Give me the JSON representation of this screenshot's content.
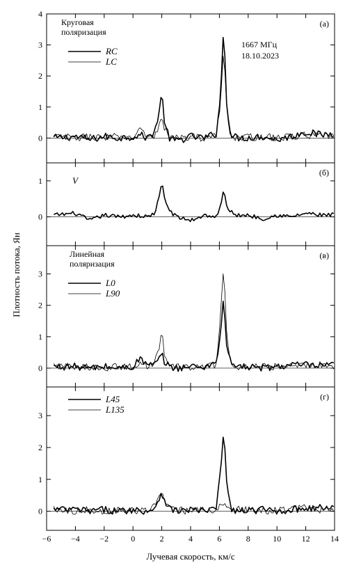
{
  "chart_data": {
    "type": "line",
    "xlabel": "Лучевая скорость, км/с",
    "ylabel": "Плотность потока, Ян",
    "xlim": [
      -6,
      14
    ],
    "x_ticks": [
      "−6",
      "−4",
      "−2",
      "0",
      "2",
      "4",
      "6",
      "8",
      "10",
      "12",
      "14"
    ],
    "panels": [
      {
        "id": "a",
        "tag": "(а)",
        "title_lines": [
          "Круговая",
          "поляризация"
        ],
        "annotation_lines": [
          "1667 МГц",
          "18.10.2023"
        ],
        "ylim": [
          -0.8,
          4
        ],
        "yticks": [
          0,
          1,
          2,
          3,
          4
        ],
        "series": [
          {
            "name": "RC",
            "style": "thick",
            "x": [
              -5.5,
              -4,
              -3,
              -2,
              -1,
              0,
              0.5,
              1,
              1.5,
              1.8,
              2,
              2.2,
              2.5,
              3,
              4,
              5,
              5.8,
              6.1,
              6.3,
              6.5,
              6.8,
              7.5,
              9,
              10,
              11,
              12,
              13,
              14
            ],
            "y": [
              0,
              0.05,
              -0.05,
              0.05,
              0,
              0.05,
              0.1,
              0,
              0.2,
              0.8,
              1.45,
              0.5,
              0,
              -0.1,
              0.05,
              0,
              0.15,
              1.5,
              3.65,
              1.2,
              0.05,
              0,
              0.05,
              -0.05,
              0.05,
              0.2,
              0.1,
              0.15
            ]
          },
          {
            "name": "LC",
            "style": "thin",
            "x": [
              -5.5,
              -4,
              -3,
              -2,
              -1,
              0,
              0.5,
              0.7,
              1,
              1.5,
              1.8,
              2,
              2.2,
              2.5,
              3,
              4,
              5,
              5.8,
              6.1,
              6.3,
              6.5,
              6.8,
              7.5,
              9,
              10,
              11,
              12,
              13,
              14
            ],
            "y": [
              0.05,
              0,
              0.05,
              0,
              0.05,
              0,
              0.35,
              0.15,
              0.05,
              0.1,
              0.35,
              0.65,
              0.3,
              0.05,
              0,
              0.05,
              0,
              0.1,
              1.2,
              2.9,
              1.0,
              0.05,
              0,
              0.05,
              0,
              0.05,
              0.1,
              0.05,
              0.1
            ]
          }
        ]
      },
      {
        "id": "b",
        "tag": "(б)",
        "ylim": [
          -0.8,
          1.5
        ],
        "yticks": [
          0,
          1
        ],
        "series": [
          {
            "name": "V",
            "style": "thick",
            "show_label": true,
            "x": [
              -5.5,
              -4,
              -3,
              -2,
              -1,
              0,
              1,
              1.5,
              1.8,
              2,
              2.2,
              2.5,
              3,
              4,
              5,
              5.8,
              6.1,
              6.3,
              6.5,
              7,
              8,
              9,
              10,
              11,
              12,
              13,
              14
            ],
            "y": [
              0.05,
              0.1,
              -0.1,
              0.05,
              0,
              0.05,
              0,
              0.1,
              0.5,
              0.95,
              0.5,
              0.2,
              0,
              -0.1,
              0.05,
              0,
              0.3,
              0.75,
              0.3,
              0.05,
              0.05,
              -0.05,
              0.05,
              0,
              0.1,
              0.05,
              0.05
            ]
          }
        ]
      },
      {
        "id": "c",
        "tag": "(в)",
        "title_lines": [
          "Линейная",
          "поляризация"
        ],
        "ylim": [
          -0.6,
          3.9
        ],
        "yticks": [
          0,
          1,
          2,
          3
        ],
        "series": [
          {
            "name": "L0",
            "style": "thick",
            "x": [
              -5.5,
              -4,
              -3,
              -2,
              -1,
              0,
              0.5,
              1,
              1.5,
              1.8,
              2,
              2.2,
              2.5,
              3,
              4,
              5,
              5.8,
              6.1,
              6.3,
              6.5,
              6.8,
              7.5,
              9,
              10,
              11,
              12,
              13,
              14
            ],
            "y": [
              0.05,
              0.05,
              0,
              0.05,
              0,
              0.05,
              0.3,
              0.1,
              0.1,
              0.25,
              0.45,
              0.2,
              0.05,
              0,
              0.05,
              0.05,
              0.2,
              1.2,
              2.25,
              0.8,
              0.1,
              0.05,
              0,
              0.05,
              0.1,
              0.1,
              0.05,
              0.1
            ]
          },
          {
            "name": "L90",
            "style": "thin",
            "x": [
              -5.5,
              -4,
              -3,
              -2,
              -1,
              0,
              0.5,
              1,
              1.5,
              1.8,
              2,
              2.2,
              2.5,
              3,
              4,
              5,
              5.8,
              6.1,
              6.3,
              6.5,
              6.8,
              7.5,
              9,
              10,
              11,
              12,
              13,
              14
            ],
            "y": [
              0.1,
              0,
              0.05,
              0,
              0.05,
              0.05,
              0.15,
              0.05,
              0.2,
              0.6,
              1.2,
              0.4,
              0.05,
              0.05,
              0,
              0.05,
              0.1,
              1.8,
              3.4,
              1.1,
              0.05,
              0,
              0.05,
              0.05,
              0.05,
              0.1,
              0.1,
              0.05
            ]
          }
        ]
      },
      {
        "id": "d",
        "tag": "(г)",
        "ylim": [
          -0.6,
          3.9
        ],
        "yticks": [
          0,
          1,
          2,
          3
        ],
        "series": [
          {
            "name": "L45",
            "style": "thick",
            "x": [
              -5.5,
              -4,
              -3,
              -2,
              -1,
              0,
              1,
              1.5,
              1.8,
              2,
              2.2,
              2.5,
              3,
              4,
              5,
              5.8,
              6.1,
              6.3,
              6.5,
              6.8,
              7.5,
              9,
              10,
              11,
              12,
              13,
              14
            ],
            "y": [
              0.05,
              0.05,
              0,
              0.05,
              0,
              0.05,
              0,
              0.1,
              0.4,
              0.6,
              0.35,
              0.1,
              0,
              0.05,
              0,
              0.1,
              1.3,
              2.7,
              0.9,
              0.05,
              0,
              0.05,
              0,
              0.05,
              0.1,
              0.1,
              0.1
            ]
          },
          {
            "name": "L135",
            "style": "thin",
            "x": [
              -5.5,
              -4,
              -3,
              -2,
              -1,
              0,
              1,
              1.5,
              1.8,
              2,
              2.2,
              2.5,
              3,
              4,
              5,
              5.8,
              6.1,
              6.3,
              6.5,
              6.8,
              7.5,
              9,
              10,
              11,
              12,
              13,
              14
            ],
            "y": [
              0.1,
              0,
              0.05,
              0,
              0.05,
              0,
              0.05,
              0.15,
              0.5,
              0.55,
              0.3,
              0.05,
              0.05,
              0,
              0.05,
              0.05,
              0.15,
              0.25,
              0.15,
              0.05,
              0.05,
              0,
              0.05,
              0.05,
              0.1,
              0.05,
              0.1
            ]
          }
        ]
      }
    ]
  }
}
